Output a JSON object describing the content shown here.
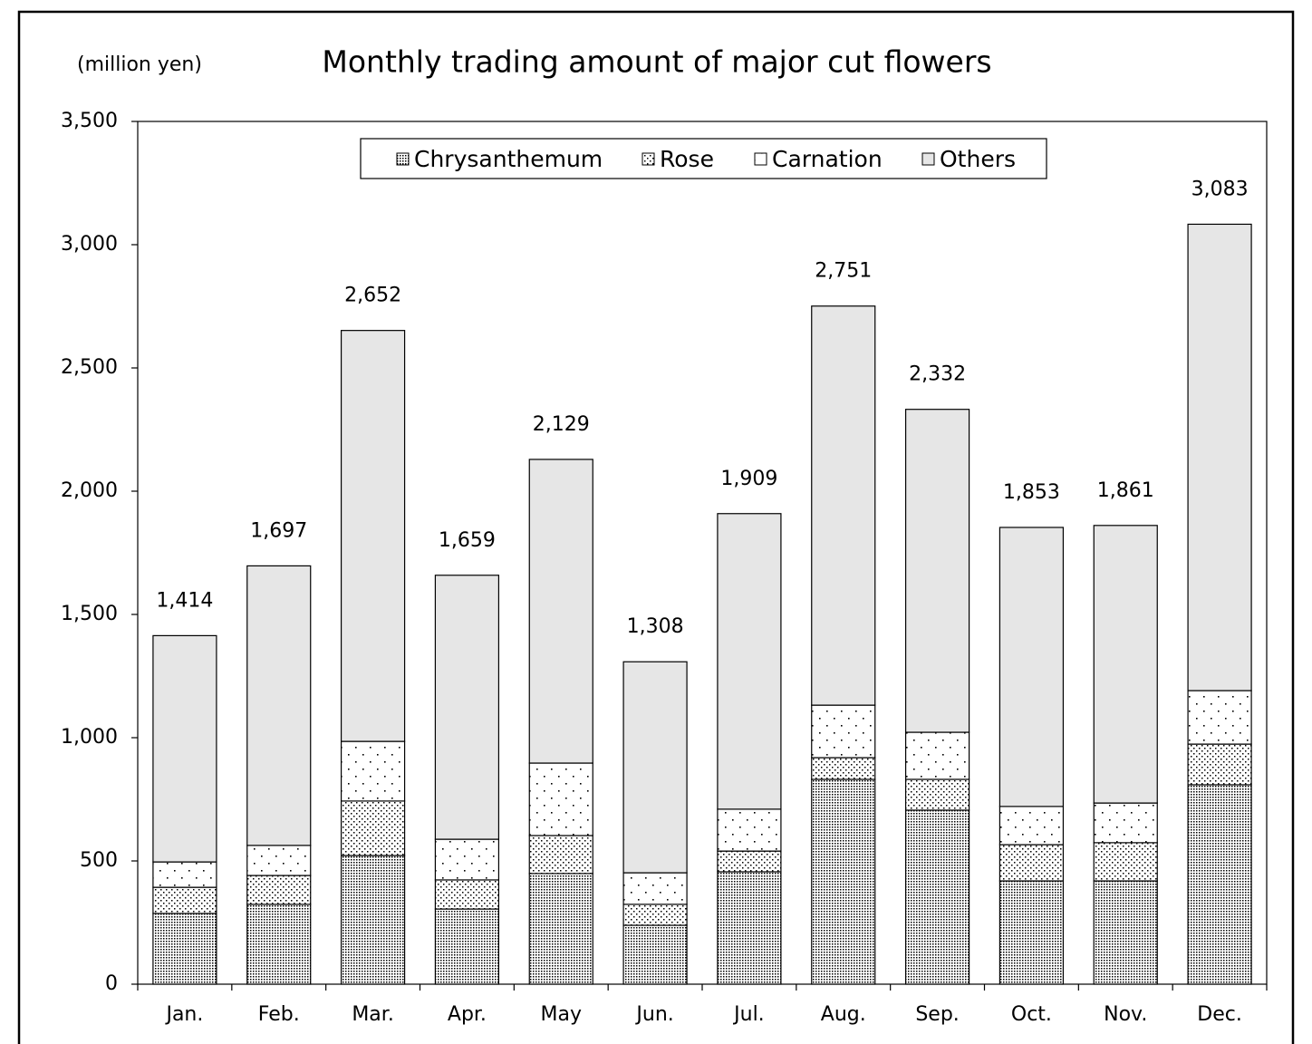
{
  "chart_data": {
    "type": "stacked-bar",
    "title": "Monthly trading amount of major cut flowers",
    "y_unit": "(million yen)",
    "categories": [
      "Jan.",
      "Feb.",
      "Mar.",
      "Apr.",
      "May",
      "Jun.",
      "Jul.",
      "Aug.",
      "Sep.",
      "Oct.",
      "Nov.",
      "Dec."
    ],
    "series": [
      {
        "name": "Chrysanthemum",
        "color": "#000000",
        "pattern": "dense",
        "values": [
          287,
          324,
          522,
          305,
          449,
          239,
          456,
          831,
          706,
          419,
          419,
          809
        ]
      },
      {
        "name": "Rose",
        "color": "#000000",
        "pattern": "medium",
        "values": [
          106,
          117,
          221,
          118,
          154,
          85,
          84,
          88,
          125,
          147,
          155,
          165
        ]
      },
      {
        "name": "Carnation",
        "color": "#000000",
        "pattern": "sparse",
        "values": [
          103,
          122,
          242,
          165,
          294,
          128,
          170,
          213,
          191,
          155,
          161,
          217
        ]
      },
      {
        "name": "Others",
        "color": "#e6e6e6",
        "pattern": "solid",
        "values": [
          918,
          1134,
          1667,
          1071,
          1232,
          856,
          1199,
          1619,
          1310,
          1132,
          1126,
          1892
        ]
      }
    ],
    "totals": [
      1414,
      1697,
      2652,
      1659,
      2129,
      1308,
      1909,
      2751,
      2332,
      1853,
      1861,
      3083
    ],
    "total_labels": [
      "1,414",
      "1,697",
      "2,652",
      "1,659",
      "2,129",
      "1,308",
      "1,909",
      "2,751",
      "2,332",
      "1,853",
      "1,861",
      "3,083"
    ],
    "ylim": [
      0,
      3500
    ],
    "yticks": [
      0,
      500,
      {
        "value": 1000,
        "label": "1,000"
      },
      {
        "value": 1500,
        "label": "1,500"
      },
      {
        "value": 2000,
        "label": "2,000"
      },
      {
        "value": 2500,
        "label": "2,500"
      },
      {
        "value": 3000,
        "label": "3,000"
      },
      {
        "value": 3500,
        "label": "3,500"
      }
    ],
    "legend": "top"
  }
}
